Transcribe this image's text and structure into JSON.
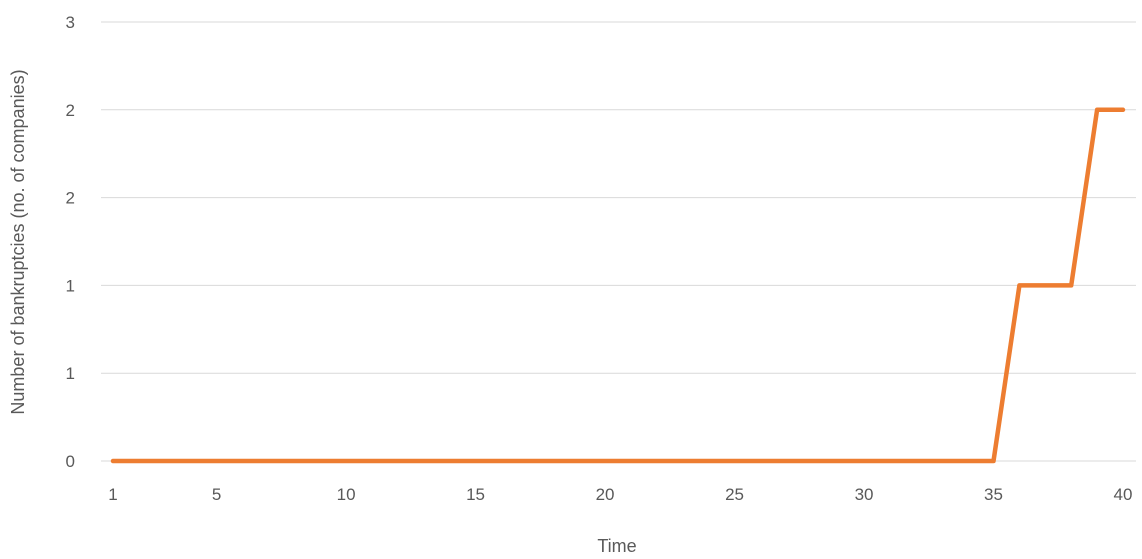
{
  "chart_data": {
    "type": "line",
    "title": "",
    "xlabel": "Time",
    "ylabel": "Number of bankruptcies (no. of companies)",
    "x": [
      1,
      2,
      3,
      4,
      5,
      6,
      7,
      8,
      9,
      10,
      11,
      12,
      13,
      14,
      15,
      16,
      17,
      18,
      19,
      20,
      21,
      22,
      23,
      24,
      25,
      26,
      27,
      28,
      29,
      30,
      31,
      32,
      33,
      34,
      35,
      36,
      37,
      38,
      39,
      40
    ],
    "series": [
      {
        "values": [
          0,
          0,
          0,
          0,
          0,
          0,
          0,
          0,
          0,
          0,
          0,
          0,
          0,
          0,
          0,
          0,
          0,
          0,
          0,
          0,
          0,
          0,
          0,
          0,
          0,
          0,
          0,
          0,
          0,
          0,
          0,
          0,
          0,
          0,
          0,
          1,
          1,
          1,
          2,
          2
        ],
        "color": "#ed7d31"
      }
    ],
    "x_tick_labels": [
      "1",
      "5",
      "10",
      "15",
      "20",
      "25",
      "30",
      "35",
      "40"
    ],
    "x_tick_positions": [
      1,
      5,
      10,
      15,
      20,
      25,
      30,
      35,
      40
    ],
    "y_tick_labels": [
      "0",
      "1",
      "1",
      "2",
      "2",
      "3"
    ],
    "y_tick_values": [
      0,
      0.5,
      1,
      1.5,
      2,
      2.5
    ],
    "xlim": [
      1,
      40
    ],
    "ylim": [
      0,
      2.5
    ],
    "grid": true,
    "legend": "none",
    "colors": {
      "grid": "#d9d9d9",
      "text": "#595959",
      "line": "#ed7d31"
    }
  }
}
